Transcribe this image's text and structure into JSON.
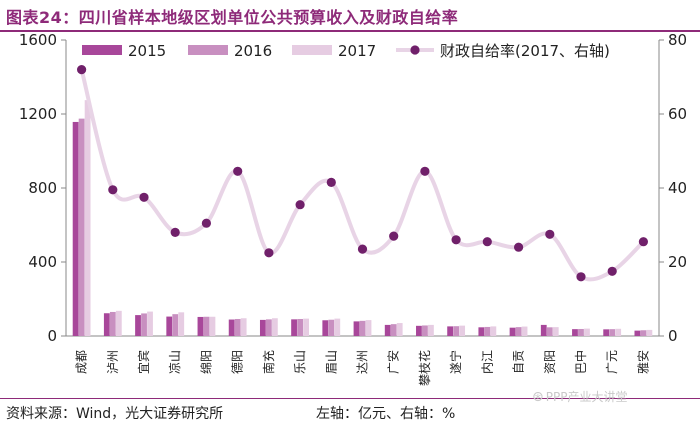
{
  "header": {
    "title": "图表24：四川省样本地级区划单位公共预算收入及财政自给率"
  },
  "footer": {
    "source": "资料来源：Wind，光大证券研究所",
    "axis_note": "左轴：亿元、右轴：%",
    "watermark": "PPP产业大讲堂"
  },
  "colors": {
    "y2015": "#a8479a",
    "y2016": "#c88fc0",
    "y2017": "#e6cce2",
    "ratio_line": "#e8d4e6",
    "ratio_marker": "#70206a",
    "title": "#8e2a79"
  },
  "chart_data": {
    "type": "bar",
    "categories": [
      "成都",
      "泸州",
      "宜宾",
      "凉山",
      "绵阳",
      "德阳",
      "南充",
      "乐山",
      "眉山",
      "达州",
      "广安",
      "攀枝花",
      "遂宁",
      "内江",
      "自贡",
      "资阳",
      "巴中",
      "广元",
      "雅安"
    ],
    "left_axis": {
      "ylim": [
        0,
        1600
      ],
      "ticks": [
        "0",
        "400",
        "800",
        "1200",
        "1600"
      ]
    },
    "right_axis": {
      "ylim": [
        0,
        80
      ],
      "ticks": [
        "0",
        "20",
        "40",
        "60",
        "80"
      ]
    },
    "series": [
      {
        "name": "2015",
        "type": "bar",
        "values": [
          1157,
          123,
          113,
          105,
          103,
          89,
          87,
          90,
          85,
          79,
          60,
          55,
          52,
          47,
          45,
          60,
          37,
          36,
          29
        ]
      },
      {
        "name": "2016",
        "type": "bar",
        "values": [
          1175,
          130,
          122,
          118,
          104,
          92,
          90,
          92,
          88,
          82,
          64,
          57,
          53,
          49,
          48,
          47,
          38,
          37,
          31
        ]
      },
      {
        "name": "2017",
        "type": "bar",
        "values": [
          1275,
          136,
          132,
          128,
          104,
          96,
          96,
          94,
          94,
          86,
          70,
          60,
          56,
          52,
          51,
          48,
          40,
          39,
          33
        ]
      },
      {
        "name": "财政自给率(2017、右轴)",
        "type": "line",
        "axis": "right",
        "values": [
          72,
          39.5,
          37.5,
          28,
          30.5,
          44.5,
          22.5,
          35.5,
          41.5,
          23.5,
          27,
          44.5,
          26,
          25.5,
          24,
          27.5,
          16,
          17.5,
          25.5
        ]
      }
    ],
    "legend_position": "top",
    "grid": false
  }
}
